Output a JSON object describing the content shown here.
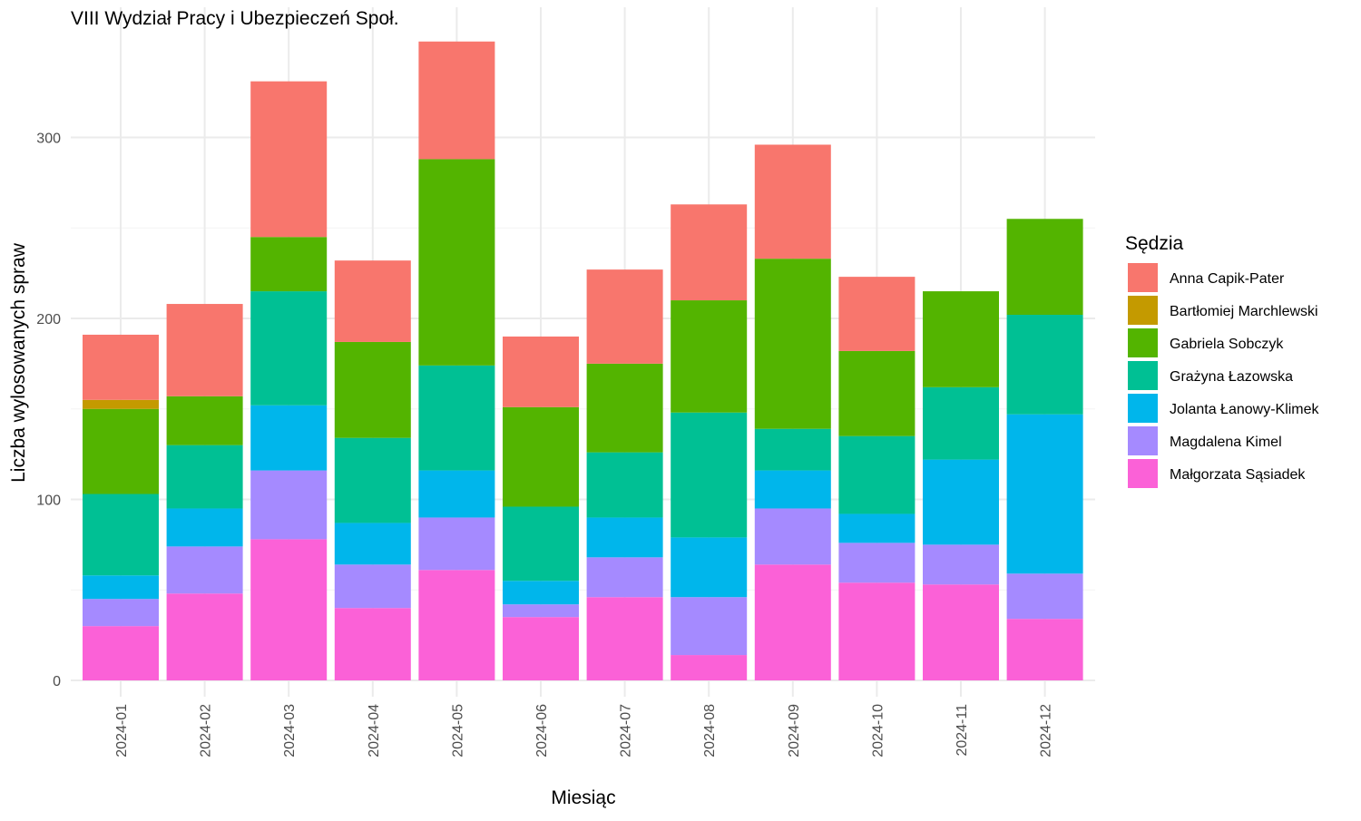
{
  "chart_data": {
    "type": "bar",
    "stacked": true,
    "title": "VIII Wydział Pracy i Ubezpieczeń Społ.",
    "xlabel": "Miesiąc",
    "ylabel": "Liczba wylosowanych spraw",
    "ylim": [
      0,
      355
    ],
    "yticks": [
      0,
      100,
      200,
      300
    ],
    "legend_title": "Sędzia",
    "legend_position": "right",
    "grid": true,
    "categories": [
      "2024-01",
      "2024-02",
      "2024-03",
      "2024-04",
      "2024-05",
      "2024-06",
      "2024-07",
      "2024-08",
      "2024-09",
      "2024-10",
      "2024-11",
      "2024-12"
    ],
    "series": [
      {
        "name": "Anna Capik-Pater",
        "color": "#F8766D",
        "values": [
          36,
          51,
          86,
          45,
          65,
          39,
          52,
          53,
          63,
          41,
          0,
          0
        ]
      },
      {
        "name": "Bartłomiej Marchlewski",
        "color": "#C49A00",
        "values": [
          5,
          0,
          0,
          0,
          0,
          0,
          0,
          0,
          0,
          0,
          0,
          0
        ]
      },
      {
        "name": "Gabriela Sobczyk",
        "color": "#53B400",
        "values": [
          47,
          27,
          30,
          53,
          114,
          55,
          49,
          62,
          94,
          47,
          53,
          53
        ]
      },
      {
        "name": "Grażyna Łazowska",
        "color": "#00C094",
        "values": [
          45,
          35,
          63,
          47,
          58,
          41,
          36,
          69,
          23,
          43,
          40,
          55
        ]
      },
      {
        "name": "Jolanta Łanowy-Klimek",
        "color": "#00B6EB",
        "values": [
          13,
          21,
          36,
          23,
          26,
          13,
          22,
          33,
          21,
          16,
          47,
          88
        ]
      },
      {
        "name": "Magdalena Kimel",
        "color": "#A58AFF",
        "values": [
          15,
          26,
          38,
          24,
          29,
          7,
          22,
          32,
          31,
          22,
          22,
          25
        ]
      },
      {
        "name": "Małgorzata Sąsiadek",
        "color": "#FB61D7",
        "values": [
          30,
          48,
          78,
          40,
          61,
          35,
          46,
          14,
          64,
          54,
          53,
          34
        ]
      }
    ]
  }
}
